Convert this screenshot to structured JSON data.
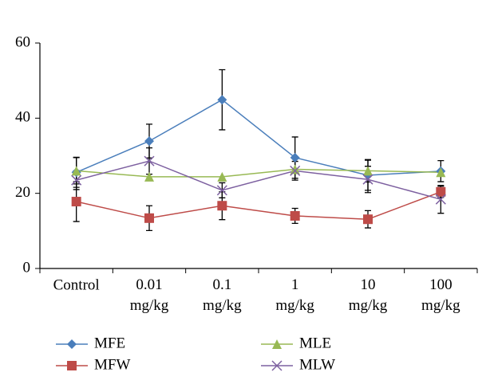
{
  "chart_data": {
    "type": "line",
    "categories": [
      "Control",
      "0.01 mg/kg",
      "0.1 mg/kg",
      "1 mg/kg",
      "10 mg/kg",
      "100 mg/kg"
    ],
    "series": [
      {
        "name": "MFE",
        "color": "#4a7ebb",
        "marker": "diamond",
        "values": [
          25.6,
          33.9,
          44.9,
          29.5,
          24.8,
          25.9
        ],
        "error": [
          4,
          4.5,
          8,
          5.5,
          4,
          2.8
        ]
      },
      {
        "name": "MFW",
        "color": "#be4b48",
        "marker": "square",
        "values": [
          17.8,
          13.4,
          16.7,
          14,
          13.1,
          20.4
        ],
        "error": [
          5.3,
          3.3,
          3.7,
          2,
          2.3,
          1.5
        ]
      },
      {
        "name": "MLE",
        "color": "#98b954",
        "marker": "triangle",
        "values": [
          26,
          24.4,
          24.4,
          26.4,
          26,
          25.6
        ],
        "error": [
          3.5,
          0,
          0,
          0,
          3,
          0
        ]
      },
      {
        "name": "MLW",
        "color": "#7d60a0",
        "marker": "x",
        "values": [
          23.5,
          28.6,
          20.8,
          26,
          23.7,
          18.4
        ],
        "error": [
          2.5,
          3.5,
          2,
          2.5,
          3.5,
          3.7
        ]
      }
    ],
    "ylim": [
      0,
      60
    ],
    "yticks": [
      0,
      20,
      40,
      60
    ],
    "grid": false
  }
}
